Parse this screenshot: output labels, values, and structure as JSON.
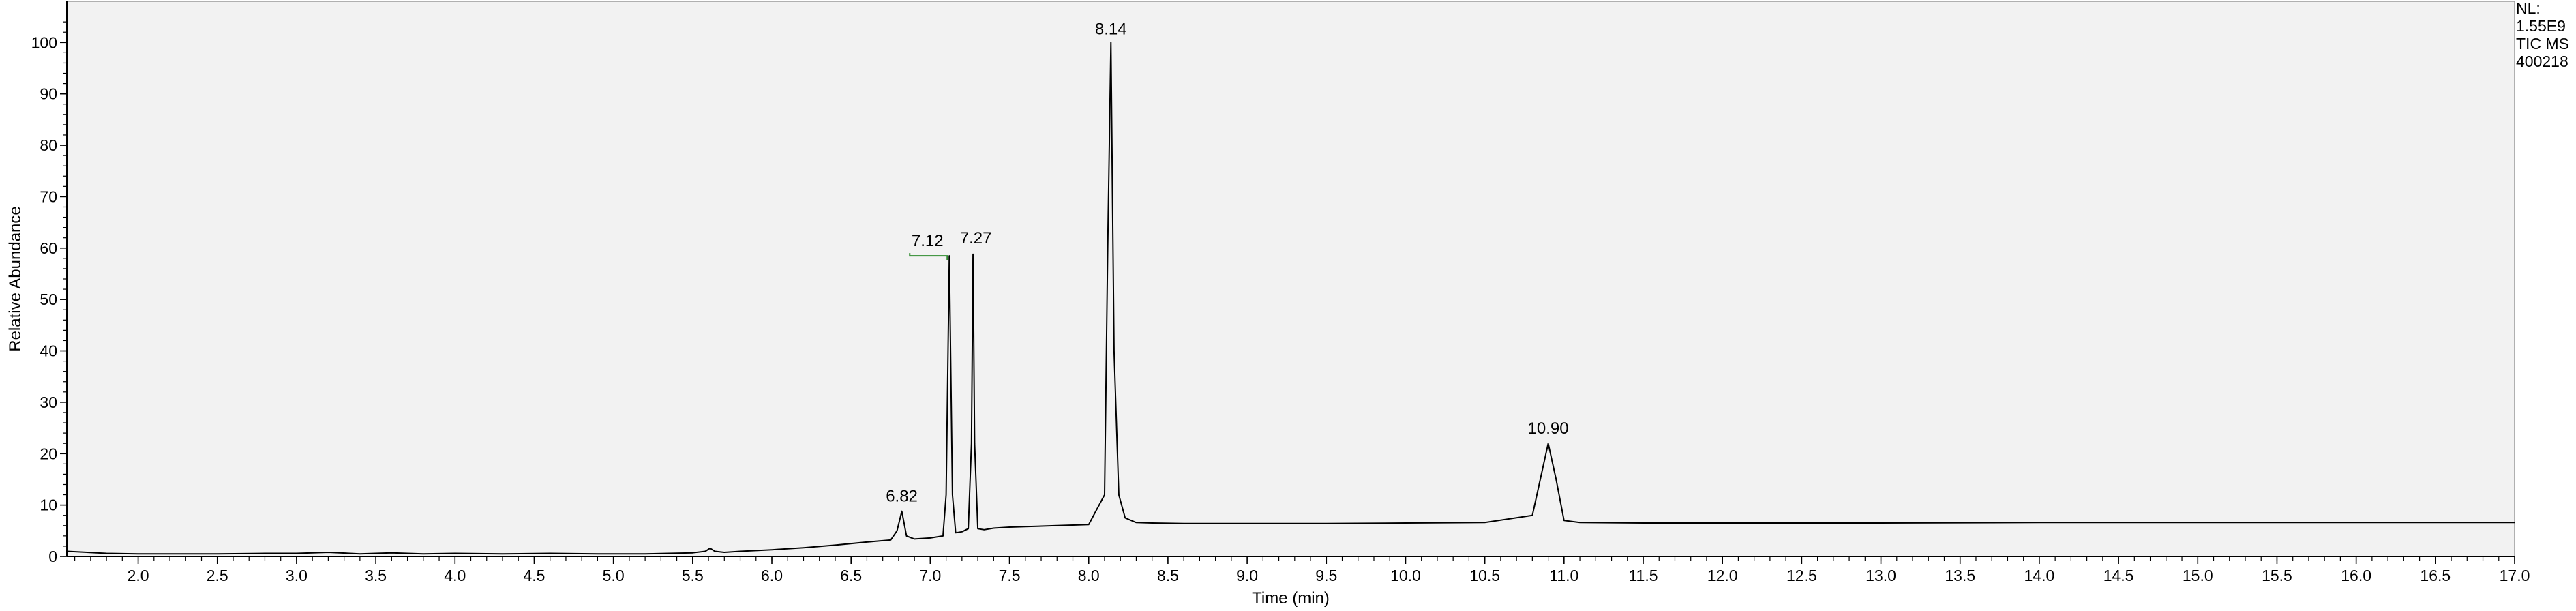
{
  "chart_data": {
    "type": "line",
    "title": "",
    "xlabel": "Time (min)",
    "ylabel": "Relative Abundance",
    "xlim": [
      1.55,
      17.0
    ],
    "ylim": [
      0,
      108
    ],
    "x_ticks": [
      2.0,
      2.5,
      3.0,
      3.5,
      4.0,
      4.5,
      5.0,
      5.5,
      6.0,
      6.5,
      7.0,
      7.5,
      8.0,
      8.5,
      9.0,
      9.5,
      10.0,
      10.5,
      11.0,
      11.5,
      12.0,
      12.5,
      13.0,
      13.5,
      14.0,
      14.5,
      15.0,
      15.5,
      16.0,
      16.5,
      17.0
    ],
    "x_tick_labels": [
      "2.0",
      "2.5",
      "3.0",
      "3.5",
      "4.0",
      "4.5",
      "5.0",
      "5.5",
      "6.0",
      "6.5",
      "7.0",
      "7.5",
      "8.0",
      "8.5",
      "9.0",
      "9.5",
      "10.0",
      "10.5",
      "11.0",
      "11.5",
      "12.0",
      "12.5",
      "13.0",
      "13.5",
      "14.0",
      "14.5",
      "15.0",
      "15.5",
      "16.0",
      "16.5",
      "17.0"
    ],
    "y_ticks": [
      0,
      10,
      20,
      30,
      40,
      50,
      60,
      70,
      80,
      90,
      100
    ],
    "y_tick_labels": [
      "0",
      "10",
      "20",
      "30",
      "40",
      "50",
      "60",
      "70",
      "80",
      "90",
      "100"
    ],
    "grid": false,
    "plot_background": "#f2f2f2",
    "line_color": "#000000",
    "annotation_color": "#2e8b2e",
    "info_box": [
      "NL:",
      "1.55E9",
      "TIC  MS",
      "400218"
    ],
    "peaks": [
      {
        "label": "6.82",
        "x": 6.82,
        "y": 8.8
      },
      {
        "label": "7.12",
        "x": 7.12,
        "y": 58.5
      },
      {
        "label": "7.27",
        "x": 7.27,
        "y": 58.8
      },
      {
        "label": "8.14",
        "x": 8.14,
        "y": 100
      },
      {
        "label": "10.90",
        "x": 10.9,
        "y": 22.0
      }
    ],
    "series": [
      {
        "x": [
          1.55,
          1.8,
          2.0,
          2.5,
          2.8,
          3.0,
          3.2,
          3.4,
          3.6,
          3.8,
          4.0,
          4.3,
          4.6,
          4.9,
          5.2,
          5.5,
          5.58,
          5.61,
          5.64,
          5.7,
          5.8,
          6.0,
          6.2,
          6.4,
          6.6,
          6.75,
          6.79,
          6.82,
          6.85,
          6.9,
          7.0,
          7.08,
          7.1,
          7.12,
          7.14,
          7.16,
          7.2,
          7.24,
          7.26,
          7.27,
          7.28,
          7.3,
          7.34,
          7.4,
          7.5,
          7.6,
          7.8,
          8.0,
          8.1,
          8.12,
          8.14,
          8.16,
          8.19,
          8.23,
          8.3,
          8.4,
          8.6,
          9.0,
          9.5,
          10.0,
          10.5,
          10.8,
          10.85,
          10.9,
          10.95,
          11.0,
          11.1,
          11.5,
          12.0,
          13.0,
          14.0,
          15.0,
          16.0,
          17.0
        ],
        "y": [
          1.0,
          0.6,
          0.5,
          0.5,
          0.6,
          0.6,
          0.8,
          0.5,
          0.7,
          0.5,
          0.6,
          0.5,
          0.6,
          0.5,
          0.5,
          0.7,
          1.0,
          1.6,
          1.0,
          0.8,
          1.0,
          1.3,
          1.7,
          2.2,
          2.8,
          3.2,
          5.0,
          8.8,
          4.0,
          3.4,
          3.6,
          4.0,
          12.0,
          58.5,
          12.0,
          4.6,
          4.8,
          5.4,
          22.0,
          58.8,
          22.0,
          5.4,
          5.2,
          5.5,
          5.7,
          5.8,
          6.0,
          6.2,
          12.0,
          60.0,
          100.0,
          40.0,
          12.0,
          7.5,
          6.6,
          6.5,
          6.4,
          6.4,
          6.4,
          6.5,
          6.6,
          8.0,
          15.0,
          22.0,
          15.0,
          7.0,
          6.6,
          6.5,
          6.5,
          6.5,
          6.6,
          6.6,
          6.6,
          6.6
        ]
      }
    ]
  }
}
